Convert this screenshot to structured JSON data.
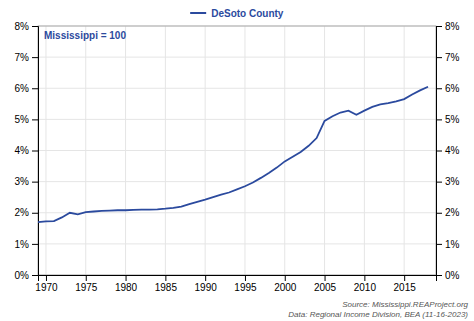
{
  "chart_data": {
    "type": "line",
    "x": [
      1969,
      1970,
      1971,
      1972,
      1973,
      1974,
      1975,
      1976,
      1977,
      1978,
      1979,
      1980,
      1981,
      1982,
      1983,
      1984,
      1985,
      1986,
      1987,
      1988,
      1989,
      1990,
      1991,
      1992,
      1993,
      1994,
      1995,
      1996,
      1997,
      1998,
      1999,
      2000,
      2001,
      2002,
      2003,
      2004,
      2005,
      2006,
      2007,
      2008,
      2009,
      2010,
      2011,
      2012,
      2013,
      2014,
      2015,
      2016,
      2017,
      2018
    ],
    "series": [
      {
        "name": "DeSoto County",
        "color": "#2b4a9e",
        "values": [
          1.7,
          1.72,
          1.73,
          1.85,
          2.0,
          1.95,
          2.02,
          2.04,
          2.06,
          2.07,
          2.08,
          2.08,
          2.09,
          2.1,
          2.1,
          2.11,
          2.13,
          2.16,
          2.2,
          2.28,
          2.35,
          2.42,
          2.5,
          2.58,
          2.65,
          2.75,
          2.85,
          2.97,
          3.12,
          3.28,
          3.45,
          3.65,
          3.8,
          3.95,
          4.15,
          4.4,
          4.95,
          5.1,
          5.22,
          5.28,
          5.15,
          5.28,
          5.4,
          5.48,
          5.52,
          5.58,
          5.65,
          5.8,
          5.93,
          6.05
        ]
      }
    ],
    "xlim": [
      1969,
      2019
    ],
    "xticks": [
      1970,
      1975,
      1980,
      1985,
      1990,
      1995,
      2000,
      2005,
      2010,
      2015
    ],
    "ylim": [
      0,
      8
    ],
    "yticks": [
      {
        "value": 0,
        "label": "0%"
      },
      {
        "value": 1,
        "label": "1%"
      },
      {
        "value": 2,
        "label": "2%"
      },
      {
        "value": 3,
        "label": "3%"
      },
      {
        "value": 4,
        "label": "4%"
      },
      {
        "value": 5,
        "label": "5%"
      },
      {
        "value": 6,
        "label": "6%"
      },
      {
        "value": 7,
        "label": "7%"
      },
      {
        "value": 8,
        "label": "8%"
      }
    ],
    "y2lim": [
      0,
      8
    ],
    "y2ticks": [
      {
        "value": 0,
        "label": "0%"
      },
      {
        "value": 1,
        "label": "1%"
      },
      {
        "value": 2,
        "label": "2%"
      },
      {
        "value": 3,
        "label": "3%"
      },
      {
        "value": 4,
        "label": "4%"
      },
      {
        "value": 5,
        "label": "5%"
      },
      {
        "value": 6,
        "label": "6%"
      },
      {
        "value": 7,
        "label": "7%"
      },
      {
        "value": 8,
        "label": "8%"
      }
    ],
    "annotations": [
      "Mississippi = 100",
      "Source: Mississippi.REAProject.org",
      "Data: Regional Income Division, BEA (11-16-2023)"
    ],
    "grid": true,
    "legend": "top"
  }
}
